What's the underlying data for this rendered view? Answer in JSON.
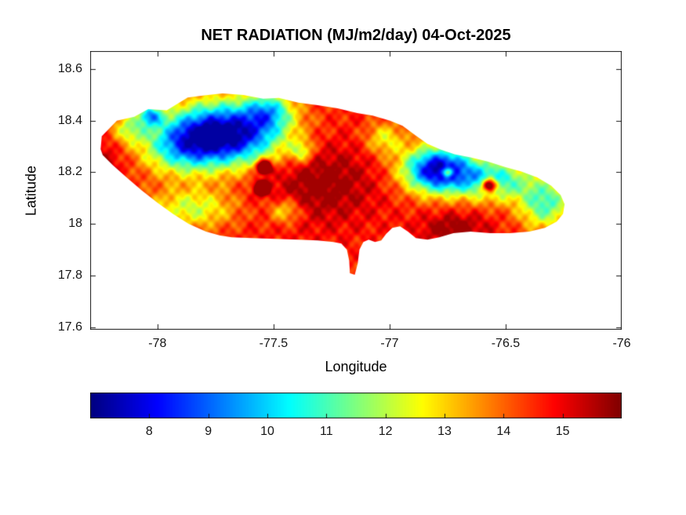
{
  "chart_data": {
    "type": "heatmap",
    "title": "NET RADIATION (MJ/m2/day) 04-Oct-2025",
    "xlabel": "Longitude",
    "ylabel": "Latitude",
    "units": "MJ/m2/day",
    "xlim": [
      -78.29,
      -76.0
    ],
    "ylim": [
      17.59,
      18.67
    ],
    "xticks": {
      "values": [
        -78,
        -77.5,
        -77,
        -76.5,
        -76
      ],
      "labels": [
        "-78",
        "-77.5",
        "-77",
        "-76.5",
        "-76"
      ]
    },
    "yticks": {
      "values": [
        17.6,
        17.8,
        18.0,
        18.2,
        18.4,
        18.6
      ],
      "labels": [
        "17.6",
        "17.8",
        "18",
        "18.2",
        "18.4",
        "18.6"
      ]
    },
    "grid": false,
    "colormap": "jet",
    "colors": {
      "axis": "#151515",
      "text": "#000000",
      "background": "#ffffff"
    },
    "colorbar": {
      "orientation": "horizontal",
      "range": [
        7,
        16
      ],
      "tick_values": [
        8,
        9,
        10,
        11,
        12,
        13,
        14,
        15
      ],
      "tick_labels": [
        "8",
        "9",
        "10",
        "11",
        "12",
        "13",
        "14",
        "15"
      ]
    },
    "outline_lonlat": [
      [
        -78.245,
        18.29
      ],
      [
        -78.24,
        18.34
      ],
      [
        -78.175,
        18.4
      ],
      [
        -78.1,
        18.415
      ],
      [
        -78.04,
        18.445
      ],
      [
        -77.96,
        18.44
      ],
      [
        -77.87,
        18.49
      ],
      [
        -77.805,
        18.497
      ],
      [
        -77.72,
        18.506
      ],
      [
        -77.63,
        18.5
      ],
      [
        -77.545,
        18.485
      ],
      [
        -77.477,
        18.488
      ],
      [
        -77.393,
        18.47
      ],
      [
        -77.31,
        18.46
      ],
      [
        -77.224,
        18.448
      ],
      [
        -77.14,
        18.43
      ],
      [
        -77.073,
        18.42
      ],
      [
        -76.998,
        18.4
      ],
      [
        -76.944,
        18.38
      ],
      [
        -76.887,
        18.342
      ],
      [
        -76.837,
        18.31
      ],
      [
        -76.78,
        18.288
      ],
      [
        -76.72,
        18.27
      ],
      [
        -76.651,
        18.258
      ],
      [
        -76.577,
        18.242
      ],
      [
        -76.5,
        18.22
      ],
      [
        -76.432,
        18.203
      ],
      [
        -76.364,
        18.18
      ],
      [
        -76.304,
        18.148
      ],
      [
        -76.263,
        18.112
      ],
      [
        -76.246,
        18.076
      ],
      [
        -76.253,
        18.039
      ],
      [
        -76.28,
        18.009
      ],
      [
        -76.331,
        17.985
      ],
      [
        -76.398,
        17.97
      ],
      [
        -76.482,
        17.964
      ],
      [
        -76.567,
        17.964
      ],
      [
        -76.651,
        17.97
      ],
      [
        -76.725,
        17.964
      ],
      [
        -76.786,
        17.948
      ],
      [
        -76.837,
        17.939
      ],
      [
        -76.887,
        17.945
      ],
      [
        -76.921,
        17.97
      ],
      [
        -76.955,
        17.991
      ],
      [
        -76.988,
        17.985
      ],
      [
        -77.015,
        17.961
      ],
      [
        -77.036,
        17.936
      ],
      [
        -77.063,
        17.93
      ],
      [
        -77.09,
        17.939
      ],
      [
        -77.113,
        17.93
      ],
      [
        -77.13,
        17.9
      ],
      [
        -77.137,
        17.848
      ],
      [
        -77.15,
        17.803
      ],
      [
        -77.171,
        17.809
      ],
      [
        -77.174,
        17.858
      ],
      [
        -77.184,
        17.9
      ],
      [
        -77.208,
        17.924
      ],
      [
        -77.242,
        17.93
      ],
      [
        -77.31,
        17.936
      ],
      [
        -77.393,
        17.939
      ],
      [
        -77.494,
        17.942
      ],
      [
        -77.595,
        17.945
      ],
      [
        -77.68,
        17.948
      ],
      [
        -77.73,
        17.955
      ],
      [
        -77.791,
        17.97
      ],
      [
        -77.865,
        18.0
      ],
      [
        -77.933,
        18.039
      ],
      [
        -78.0,
        18.082
      ],
      [
        -78.068,
        18.13
      ],
      [
        -78.135,
        18.182
      ],
      [
        -78.192,
        18.227
      ],
      [
        -78.236,
        18.267
      ]
    ],
    "field": {
      "base_value": 14.6,
      "clamp": [
        7.3,
        15.7
      ],
      "anomalies": [
        {
          "lon": -77.7,
          "lat": 18.35,
          "sx": 0.17,
          "sy": 0.085,
          "amp": -7.5
        },
        {
          "lon": -77.9,
          "lat": 18.3,
          "sx": 0.12,
          "sy": 0.075,
          "amp": -3.2
        },
        {
          "lon": -77.52,
          "lat": 18.44,
          "sx": 0.07,
          "sy": 0.05,
          "amp": -3.0
        },
        {
          "lon": -78.03,
          "lat": 18.42,
          "sx": 0.035,
          "sy": 0.028,
          "amp": -4.0
        },
        {
          "lon": -78.12,
          "lat": 18.37,
          "sx": 0.05,
          "sy": 0.04,
          "amp": -2.2
        },
        {
          "lon": -77.85,
          "lat": 18.06,
          "sx": 0.13,
          "sy": 0.055,
          "amp": -2.4
        },
        {
          "lon": -77.45,
          "lat": 18.05,
          "sx": 0.05,
          "sy": 0.035,
          "amp": -2.0
        },
        {
          "lon": -77.38,
          "lat": 18.28,
          "sx": 0.035,
          "sy": 0.03,
          "amp": -2.3
        },
        {
          "lon": -76.79,
          "lat": 18.21,
          "sx": 0.105,
          "sy": 0.062,
          "amp": -7.2
        },
        {
          "lon": -76.55,
          "lat": 18.17,
          "sx": 0.11,
          "sy": 0.055,
          "amp": -4.0
        },
        {
          "lon": -76.33,
          "lat": 18.08,
          "sx": 0.08,
          "sy": 0.07,
          "amp": -3.6
        },
        {
          "lon": -77.02,
          "lat": 18.33,
          "sx": 0.06,
          "sy": 0.045,
          "amp": -2.0
        },
        {
          "lon": -77.3,
          "lat": 18.16,
          "sx": 0.17,
          "sy": 0.11,
          "amp": 1.4
        },
        {
          "lon": -78.27,
          "lat": 18.22,
          "sx": 0.08,
          "sy": 0.07,
          "amp": 1.4
        },
        {
          "lon": -76.72,
          "lat": 17.98,
          "sx": 0.1,
          "sy": 0.045,
          "amp": 1.4
        },
        {
          "lon": -76.57,
          "lat": 18.15,
          "sx": 0.022,
          "sy": 0.018,
          "amp": 6.5
        },
        {
          "lon": -76.75,
          "lat": 18.2,
          "sx": 0.016,
          "sy": 0.013,
          "amp": 4.5
        },
        {
          "lon": -77.54,
          "lat": 18.22,
          "sx": 0.02,
          "sy": 0.017,
          "amp": 6.5
        },
        {
          "lon": -77.55,
          "lat": 18.14,
          "sx": 0.02,
          "sy": 0.017,
          "amp": 5.5
        }
      ]
    }
  }
}
